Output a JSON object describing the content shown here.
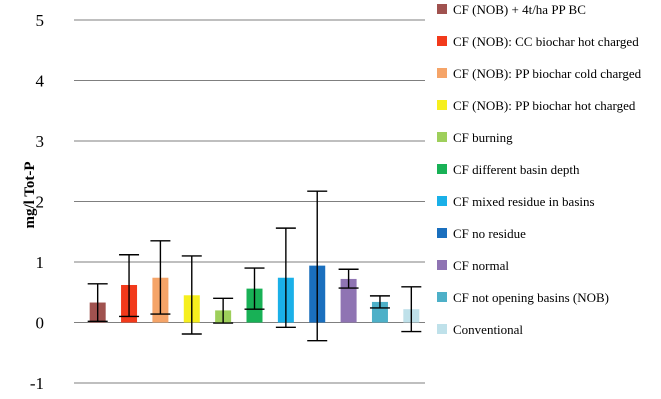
{
  "chart_data": {
    "type": "bar",
    "ylabel": "mg/l Tot-P",
    "ylim": [
      -1,
      5
    ],
    "yticks": [
      -1,
      0,
      1,
      2,
      3,
      4,
      5
    ],
    "grid": true,
    "legend_position": "right",
    "series": [
      {
        "name": "CF (NOB) + 4t/ha PP BC",
        "value": 0.33,
        "err_low": 0.02,
        "err_high": 0.64,
        "color": "#a0524f"
      },
      {
        "name": "CF (NOB): CC biochar hot charged",
        "value": 0.62,
        "err_low": 0.1,
        "err_high": 1.12,
        "color": "#f23a1b"
      },
      {
        "name": "CF (NOB): PP biochar cold charged",
        "value": 0.74,
        "err_low": 0.14,
        "err_high": 1.35,
        "color": "#f5a468"
      },
      {
        "name": "CF (NOB): PP biochar hot charged",
        "value": 0.45,
        "err_low": -0.19,
        "err_high": 1.1,
        "color": "#f6ef1e"
      },
      {
        "name": "CF burning",
        "value": 0.2,
        "err_low": -0.01,
        "err_high": 0.4,
        "color": "#9ecf5b"
      },
      {
        "name": "CF different basin depth",
        "value": 0.56,
        "err_low": 0.22,
        "err_high": 0.9,
        "color": "#18b156"
      },
      {
        "name": "CF mixed residue in basins",
        "value": 0.74,
        "err_low": -0.08,
        "err_high": 1.56,
        "color": "#1ab0e8"
      },
      {
        "name": "CF no residue",
        "value": 0.94,
        "err_low": -0.3,
        "err_high": 2.17,
        "color": "#1a6fbe"
      },
      {
        "name": "CF normal",
        "value": 0.72,
        "err_low": 0.57,
        "err_high": 0.88,
        "color": "#8f74b3"
      },
      {
        "name": "CF not opening basins (NOB)",
        "value": 0.34,
        "err_low": 0.24,
        "err_high": 0.44,
        "color": "#4db0c8"
      },
      {
        "name": "Conventional",
        "value": 0.22,
        "err_low": -0.15,
        "err_high": 0.59,
        "color": "#bfe1ea"
      }
    ]
  }
}
